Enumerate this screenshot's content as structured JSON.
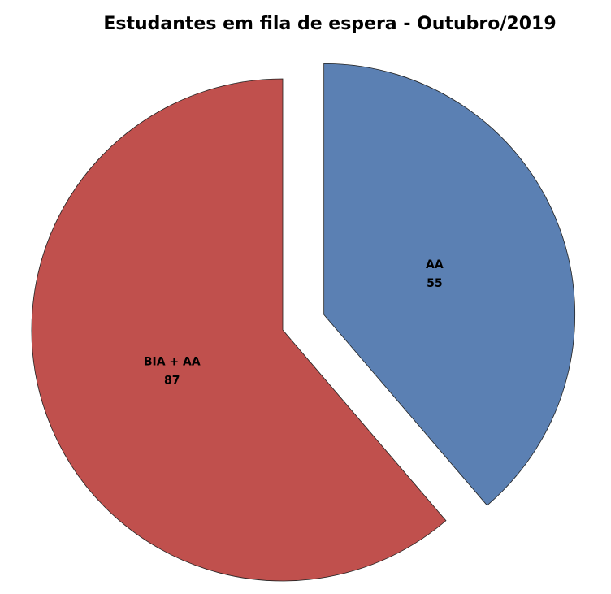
{
  "chart_data": {
    "type": "pie",
    "title": "Estudantes em fila de espera - Outubro/2019",
    "categories": [
      "AA",
      "BIA + AA"
    ],
    "values": [
      55,
      87
    ],
    "colors": [
      "#5b80b3",
      "#c0504d"
    ]
  }
}
